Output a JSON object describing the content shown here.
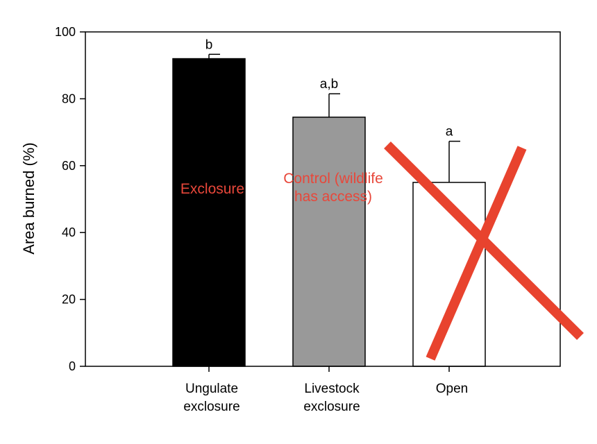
{
  "chart_data": {
    "type": "bar",
    "ylabel": "Area burned (%)",
    "xlabel": "",
    "ylim": [
      0,
      100
    ],
    "yticks": [
      0,
      20,
      40,
      60,
      80,
      100
    ],
    "categories": [
      [
        "Ungulate",
        "exclosure"
      ],
      [
        "Livestock",
        "exclosure"
      ],
      [
        "Open"
      ]
    ],
    "values": [
      92,
      74.5,
      55
    ],
    "error_upper": [
      93.3,
      81.5,
      67.3
    ],
    "significance_letters": [
      "b",
      "a,b",
      "a"
    ],
    "bar_colors": [
      "#000000",
      "#999999",
      "#ffffff"
    ],
    "annotations": [
      {
        "lines": [
          "Exclosure"
        ],
        "color": "#e8473a"
      },
      {
        "lines": [
          "Control (wildlife",
          "has access)"
        ],
        "color": "#e8473a"
      }
    ],
    "cross_out": {
      "target_category": "Open",
      "color": "#e8432e"
    },
    "grid": false,
    "legend": "none"
  }
}
